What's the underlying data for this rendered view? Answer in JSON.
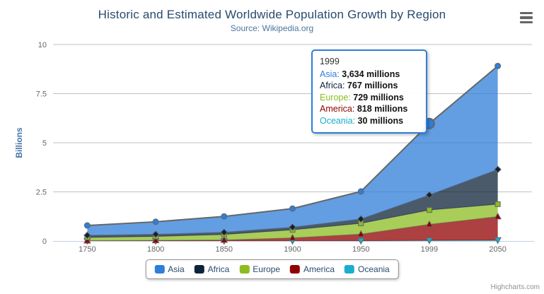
{
  "title": "Historic and Estimated Worldwide Population Growth by Region",
  "subtitle": "Source: Wikipedia.org",
  "credits": "Highcharts.com",
  "colors": {
    "background": "#ffffff",
    "title": "#274b6d",
    "subtitle": "#4d759e",
    "yaxis_title": "#4572a7",
    "axis_label": "#666666",
    "grid": "#c0c0c0",
    "axis_line": "#c0d0e0",
    "series_line": "#666666",
    "legend_border": "#909090",
    "legend_text": "#274b6d",
    "tooltip_border": "#2f7ed8",
    "credits": "#909090"
  },
  "chart_data": {
    "type": "area",
    "stacking": "normal",
    "title": "Historic and Estimated Worldwide Population Growth by Region",
    "subtitle": "Source: Wikipedia.org",
    "xlabel": "",
    "ylabel": "Billions",
    "values_unit": "millions",
    "categories": [
      "1750",
      "1800",
      "1850",
      "1900",
      "1950",
      "1999",
      "2050"
    ],
    "yticks": [
      0,
      2.5,
      5,
      7.5,
      10
    ],
    "ylim": [
      0,
      10
    ],
    "grid": true,
    "legend_position": "bottom",
    "fill_opacity": 0.75,
    "series": [
      {
        "name": "Asia",
        "color": "#2f7ed8",
        "marker": "circle",
        "values": [
          502,
          635,
          809,
          947,
          1402,
          3634,
          5268
        ]
      },
      {
        "name": "Africa",
        "color": "#0d233a",
        "marker": "diamond",
        "values": [
          106,
          107,
          111,
          133,
          221,
          767,
          1766
        ]
      },
      {
        "name": "Europe",
        "color": "#8bbc21",
        "marker": "square",
        "values": [
          163,
          203,
          276,
          408,
          547,
          729,
          628
        ]
      },
      {
        "name": "America",
        "color": "#910000",
        "marker": "triangle",
        "values": [
          18,
          31,
          54,
          156,
          339,
          818,
          1201
        ]
      },
      {
        "name": "Oceania",
        "color": "#1aadce",
        "marker": "triangle-down",
        "values": [
          2,
          2,
          2,
          6,
          13,
          30,
          46
        ]
      }
    ],
    "hover": {
      "category": "1999",
      "series": "Asia"
    }
  },
  "tooltip": {
    "header": "1999",
    "rows": [
      {
        "name": "Asia",
        "value": "3,634 millions",
        "color": "#2f7ed8"
      },
      {
        "name": "Africa",
        "value": "767 millions",
        "color": "#0d233a"
      },
      {
        "name": "Europe",
        "value": "729 millions",
        "color": "#8bbc21"
      },
      {
        "name": "America",
        "value": "818 millions",
        "color": "#910000"
      },
      {
        "name": "Oceania",
        "value": "30 millions",
        "color": "#1aadce"
      }
    ]
  },
  "legend": {
    "items": [
      "Asia",
      "Africa",
      "Europe",
      "America",
      "Oceania"
    ]
  }
}
